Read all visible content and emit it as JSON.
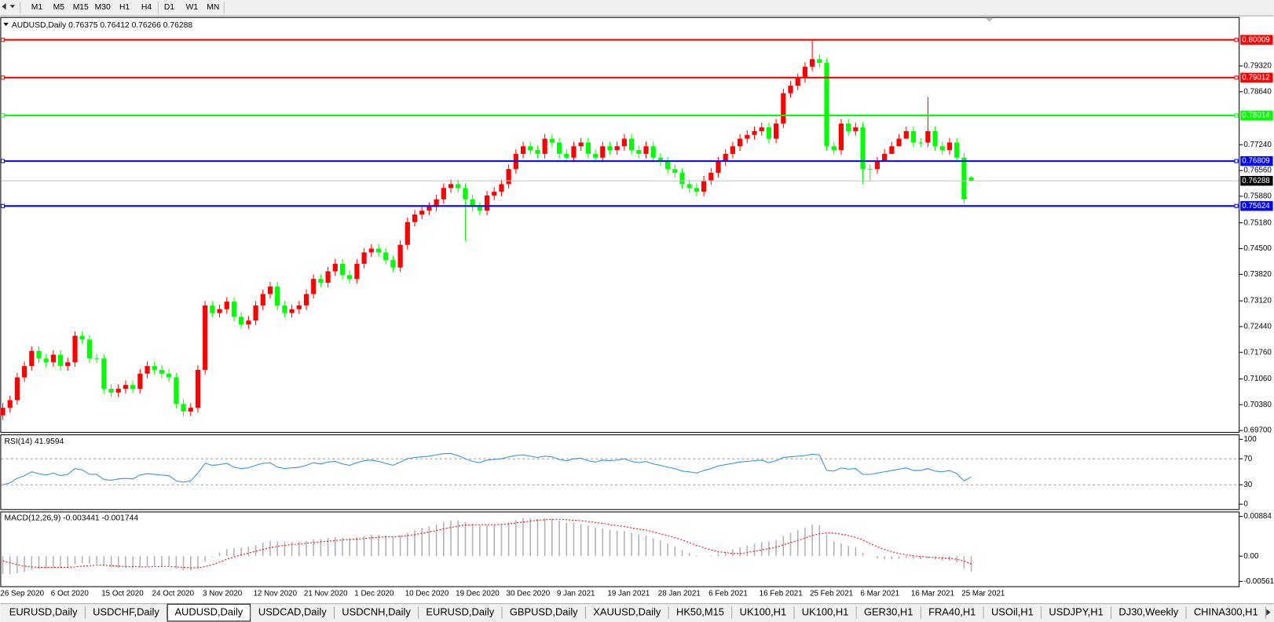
{
  "toolbar": {
    "timeframes": [
      "M1",
      "M5",
      "M15",
      "M30",
      "H1",
      "H4",
      "D1",
      "W1",
      "MN"
    ]
  },
  "tabs": {
    "items": [
      "EURUSD,Daily",
      "USDCHF,Daily",
      "AUDUSD,Daily",
      "USDCAD,Daily",
      "USDCNH,Daily",
      "EURUSD,Daily",
      "GBPUSD,Daily",
      "XAUUSD,Daily",
      "HK50,M15",
      "UK100,H1",
      "UK100,H1",
      "GER30,H1",
      "FRA40,H1",
      "USOil,H1",
      "USDJPY,H1",
      "DJ30,Weekly",
      "CHINA300,H1"
    ],
    "active": 2
  },
  "chart_data": [
    {
      "type": "candlestick",
      "title": "AUDUSD,Daily 0.76375 0.76412 0.76266 0.76288",
      "up_color": "#ff0000",
      "down_color": "#00ff00",
      "categories": [
        "26 Sep 2020",
        null,
        null,
        null,
        null,
        null,
        null,
        "6 Oct 2020",
        null,
        null,
        null,
        null,
        null,
        null,
        "15 Oct 2020",
        null,
        null,
        null,
        null,
        null,
        null,
        "24 Oct 2020",
        null,
        null,
        null,
        null,
        null,
        null,
        "3 Nov 2020",
        null,
        null,
        null,
        null,
        null,
        null,
        "12 Nov 2020",
        null,
        null,
        null,
        null,
        null,
        null,
        "21 Nov 2020",
        null,
        null,
        null,
        null,
        null,
        null,
        "1 Dec 2020",
        null,
        null,
        null,
        null,
        null,
        null,
        "10 Dec 2020",
        null,
        null,
        null,
        null,
        null,
        null,
        "19 Dec 2020",
        null,
        null,
        null,
        null,
        null,
        null,
        "30 Dec 2020",
        null,
        null,
        null,
        null,
        null,
        null,
        "9 Jan 2021",
        null,
        null,
        null,
        null,
        null,
        null,
        "19 Jan 2021",
        null,
        null,
        null,
        null,
        null,
        null,
        "28 Jan 2021",
        null,
        null,
        null,
        null,
        null,
        null,
        "6 Feb 2021",
        null,
        null,
        null,
        null,
        null,
        null,
        "16 Feb 2021",
        null,
        null,
        null,
        null,
        null,
        null,
        "25 Feb 2021",
        null,
        null,
        null,
        null,
        null,
        null,
        "6 Mar 2021",
        null,
        null,
        null,
        null,
        null,
        null,
        "16 Mar 2021",
        null,
        null,
        null,
        null,
        null,
        null,
        "25 Mar 2021",
        null
      ],
      "open": [
        0.701,
        0.703,
        0.705,
        0.711,
        0.714,
        0.718,
        0.716,
        0.715,
        0.717,
        0.714,
        0.715,
        0.722,
        0.721,
        0.716,
        0.716,
        0.708,
        0.707,
        0.708,
        0.709,
        0.708,
        0.712,
        0.714,
        0.713,
        0.712,
        0.711,
        0.704,
        0.702,
        0.703,
        0.713,
        0.73,
        0.728,
        0.729,
        0.731,
        0.727,
        0.725,
        0.726,
        0.73,
        0.733,
        0.735,
        0.73,
        0.728,
        0.729,
        0.73,
        0.733,
        0.737,
        0.736,
        0.739,
        0.741,
        0.738,
        0.737,
        0.741,
        0.744,
        0.745,
        0.744,
        0.742,
        0.74,
        0.746,
        0.752,
        0.754,
        0.755,
        0.756,
        0.758,
        0.761,
        0.762,
        0.761,
        0.758,
        0.756,
        0.755,
        0.759,
        0.76,
        0.762,
        0.766,
        0.77,
        0.772,
        0.771,
        0.77,
        0.774,
        0.773,
        0.77,
        0.769,
        0.772,
        0.773,
        0.77,
        0.769,
        0.772,
        0.771,
        0.772,
        0.774,
        0.771,
        0.77,
        0.772,
        0.769,
        0.768,
        0.766,
        0.765,
        0.762,
        0.761,
        0.76,
        0.763,
        0.765,
        0.768,
        0.77,
        0.772,
        0.774,
        0.775,
        0.776,
        0.777,
        0.774,
        0.778,
        0.786,
        0.788,
        0.79,
        0.793,
        0.795,
        0.794,
        0.772,
        0.771,
        0.778,
        0.776,
        0.777,
        0.766,
        0.766,
        0.768,
        0.77,
        0.772,
        0.774,
        0.776,
        0.773,
        0.773,
        0.776,
        0.772,
        0.771,
        0.773,
        0.769,
        0.76375
      ],
      "high": [
        0.7042,
        0.7062,
        0.7122,
        0.7152,
        0.7192,
        0.7192,
        0.7172,
        0.7182,
        0.7182,
        0.7162,
        0.7232,
        0.7232,
        0.7222,
        0.7172,
        0.7172,
        0.7092,
        0.7092,
        0.7102,
        0.7102,
        0.7132,
        0.7152,
        0.7152,
        0.7142,
        0.7132,
        0.7122,
        0.7052,
        0.7042,
        0.7142,
        0.7312,
        0.7312,
        0.7302,
        0.7322,
        0.7322,
        0.7282,
        0.7272,
        0.7312,
        0.7342,
        0.7362,
        0.7362,
        0.7312,
        0.7302,
        0.7312,
        0.7342,
        0.7382,
        0.7382,
        0.7402,
        0.7422,
        0.7422,
        0.7392,
        0.7422,
        0.7452,
        0.7462,
        0.7462,
        0.7452,
        0.7432,
        0.7472,
        0.7532,
        0.7552,
        0.7562,
        0.7572,
        0.7592,
        0.7622,
        0.7632,
        0.7632,
        0.7622,
        0.7592,
        0.7572,
        0.7602,
        0.7612,
        0.7632,
        0.7672,
        0.7712,
        0.7732,
        0.7732,
        0.7722,
        0.7752,
        0.7752,
        0.7742,
        0.7712,
        0.7732,
        0.7742,
        0.7742,
        0.7712,
        0.7732,
        0.7732,
        0.7732,
        0.7752,
        0.7752,
        0.7722,
        0.7732,
        0.7732,
        0.7702,
        0.7692,
        0.7672,
        0.7662,
        0.7632,
        0.7622,
        0.7642,
        0.7662,
        0.7692,
        0.7712,
        0.7732,
        0.7752,
        0.7762,
        0.7772,
        0.7782,
        0.7782,
        0.7792,
        0.7872,
        0.7892,
        0.7912,
        0.7942,
        0.8001,
        0.7962,
        0.7952,
        0.7732,
        0.7792,
        0.7792,
        0.7782,
        0.7782,
        0.7672,
        0.7692,
        0.7712,
        0.7732,
        0.7752,
        0.7772,
        0.7772,
        0.7742,
        0.785,
        0.7772,
        0.7732,
        0.7742,
        0.7742,
        0.7702,
        0.76412
      ],
      "low": [
        0.6998,
        0.7018,
        0.7038,
        0.7098,
        0.7128,
        0.7148,
        0.7138,
        0.7138,
        0.7128,
        0.7128,
        0.7138,
        0.7198,
        0.7148,
        0.7148,
        0.7068,
        0.7058,
        0.7058,
        0.7068,
        0.7068,
        0.7068,
        0.7108,
        0.7118,
        0.7108,
        0.7098,
        0.7028,
        0.7008,
        0.7008,
        0.7018,
        0.7118,
        0.7268,
        0.7268,
        0.7278,
        0.7258,
        0.7238,
        0.7238,
        0.7248,
        0.7288,
        0.7318,
        0.7288,
        0.7268,
        0.7268,
        0.7278,
        0.7288,
        0.7318,
        0.7348,
        0.7348,
        0.7378,
        0.7368,
        0.7358,
        0.7358,
        0.7398,
        0.7428,
        0.7428,
        0.7408,
        0.7388,
        0.7388,
        0.7448,
        0.7508,
        0.7528,
        0.7538,
        0.7548,
        0.7568,
        0.7598,
        0.7598,
        0.747,
        0.7548,
        0.7538,
        0.7538,
        0.7578,
        0.7588,
        0.7608,
        0.7648,
        0.7688,
        0.7698,
        0.7688,
        0.7688,
        0.7718,
        0.7688,
        0.7678,
        0.7678,
        0.7708,
        0.7688,
        0.7678,
        0.7678,
        0.7698,
        0.7698,
        0.7708,
        0.7698,
        0.7688,
        0.7688,
        0.7678,
        0.7668,
        0.7648,
        0.7638,
        0.7608,
        0.7598,
        0.7588,
        0.7588,
        0.7618,
        0.7638,
        0.7668,
        0.7688,
        0.7708,
        0.7728,
        0.7738,
        0.7748,
        0.7728,
        0.7728,
        0.7768,
        0.7848,
        0.7868,
        0.7888,
        0.7918,
        0.7928,
        0.7708,
        0.7698,
        0.7698,
        0.7748,
        0.7748,
        0.762,
        0.763,
        0.7648,
        0.7688,
        0.7708,
        0.7728,
        0.7748,
        0.7718,
        0.7718,
        0.7718,
        0.7708,
        0.7698,
        0.7698,
        0.7678,
        0.7568,
        0.76266
      ],
      "close": [
        0.703,
        0.705,
        0.711,
        0.714,
        0.718,
        0.716,
        0.715,
        0.717,
        0.714,
        0.715,
        0.722,
        0.721,
        0.716,
        0.716,
        0.708,
        0.707,
        0.708,
        0.709,
        0.708,
        0.712,
        0.714,
        0.713,
        0.712,
        0.711,
        0.704,
        0.702,
        0.703,
        0.713,
        0.73,
        0.728,
        0.729,
        0.731,
        0.727,
        0.725,
        0.726,
        0.73,
        0.733,
        0.735,
        0.73,
        0.728,
        0.729,
        0.73,
        0.733,
        0.737,
        0.736,
        0.739,
        0.741,
        0.738,
        0.737,
        0.741,
        0.744,
        0.745,
        0.744,
        0.742,
        0.74,
        0.746,
        0.752,
        0.754,
        0.755,
        0.756,
        0.758,
        0.761,
        0.762,
        0.761,
        0.758,
        0.756,
        0.755,
        0.759,
        0.76,
        0.762,
        0.766,
        0.77,
        0.772,
        0.771,
        0.77,
        0.774,
        0.773,
        0.77,
        0.769,
        0.772,
        0.773,
        0.77,
        0.769,
        0.772,
        0.771,
        0.772,
        0.774,
        0.771,
        0.77,
        0.772,
        0.769,
        0.768,
        0.766,
        0.765,
        0.762,
        0.761,
        0.76,
        0.763,
        0.765,
        0.768,
        0.77,
        0.772,
        0.774,
        0.775,
        0.776,
        0.777,
        0.774,
        0.778,
        0.786,
        0.788,
        0.79,
        0.793,
        0.795,
        0.794,
        0.772,
        0.771,
        0.778,
        0.776,
        0.777,
        0.766,
        0.766,
        0.768,
        0.77,
        0.772,
        0.774,
        0.776,
        0.773,
        0.773,
        0.776,
        0.772,
        0.771,
        0.773,
        0.769,
        0.758,
        0.76288
      ],
      "ylim": [
        0.6966,
        0.8061
      ],
      "yticks": [
        {
          "value": 0.7932,
          "label": "0.79320"
        },
        {
          "value": 0.7864,
          "label": "0.78640"
        },
        {
          "value": 0.7724,
          "label": "0.77240"
        },
        {
          "value": 0.7656,
          "label": "0.76560"
        },
        {
          "value": 0.7588,
          "label": "0.75880"
        },
        {
          "value": 0.7518,
          "label": "0.75180"
        },
        {
          "value": 0.745,
          "label": "0.74500"
        },
        {
          "value": 0.7382,
          "label": "0.73820"
        },
        {
          "value": 0.7312,
          "label": "0.73120"
        },
        {
          "value": 0.7244,
          "label": "0.72440"
        },
        {
          "value": 0.7176,
          "label": "0.71760"
        },
        {
          "value": 0.7106,
          "label": "0.71060"
        },
        {
          "value": 0.7038,
          "label": "0.70380"
        },
        {
          "value": 0.697,
          "label": "0.69700"
        }
      ],
      "levels": [
        {
          "value": 0.80009,
          "color": "#ff0000"
        },
        {
          "value": 0.79012,
          "color": "#ff0000"
        },
        {
          "value": 0.78014,
          "color": "#00ff00"
        },
        {
          "value": 0.76809,
          "color": "#0000ff"
        },
        {
          "value": 0.75624,
          "color": "#0000ff"
        }
      ],
      "last_price_color": "#c0c0c0"
    },
    {
      "type": "line",
      "title": "RSI(14) 41.9594",
      "color": "#2f8ee0",
      "values": [
        30,
        33,
        40,
        44,
        50,
        47,
        45,
        48,
        44,
        46,
        55,
        53,
        46,
        46,
        38,
        37,
        39,
        40,
        39,
        45,
        47,
        46,
        45,
        44,
        36,
        34,
        36,
        48,
        63,
        60,
        61,
        63,
        57,
        55,
        56,
        60,
        63,
        64,
        57,
        55,
        56,
        57,
        60,
        64,
        62,
        65,
        66,
        62,
        60,
        64,
        67,
        68,
        66,
        63,
        60,
        65,
        70,
        72,
        73,
        74,
        76,
        78,
        78,
        75,
        70,
        66,
        64,
        68,
        69,
        70,
        73,
        75,
        76,
        74,
        72,
        74,
        73,
        69,
        67,
        70,
        71,
        67,
        65,
        68,
        67,
        68,
        70,
        66,
        64,
        66,
        62,
        60,
        57,
        55,
        51,
        50,
        48,
        52,
        55,
        59,
        61,
        63,
        65,
        66,
        67,
        68,
        64,
        67,
        72,
        73,
        74,
        75,
        77,
        76,
        52,
        51,
        56,
        54,
        55,
        46,
        46,
        48,
        50,
        52,
        54,
        56,
        52,
        52,
        55,
        51,
        50,
        52,
        47,
        36,
        41.9594
      ],
      "ylim": [
        0,
        100
      ],
      "yticks": [
        0,
        30,
        70,
        100
      ]
    },
    {
      "type": "macd",
      "title": "MACD(12,26,9) -0.003441 -0.001744",
      "color": "#b0b0b0",
      "signal_color": "#ff0000",
      "values": [
        -0.004,
        -0.004,
        -0.0038,
        -0.0035,
        -0.003,
        -0.0028,
        -0.0027,
        -0.0025,
        -0.0025,
        -0.0024,
        -0.0018,
        -0.0016,
        -0.0017,
        -0.0017,
        -0.0022,
        -0.0025,
        -0.0026,
        -0.0026,
        -0.0027,
        -0.0025,
        -0.0023,
        -0.0022,
        -0.0022,
        -0.0022,
        -0.0027,
        -0.0031,
        -0.0032,
        -0.0026,
        -0.0012,
        -0.0002,
        0.0008,
        0.0016,
        0.0018,
        0.0019,
        0.0021,
        0.0025,
        0.003,
        0.0034,
        0.0033,
        0.0032,
        0.0032,
        0.0032,
        0.0034,
        0.0037,
        0.0038,
        0.004,
        0.0042,
        0.0041,
        0.004,
        0.0042,
        0.0045,
        0.0047,
        0.0047,
        0.0046,
        0.0043,
        0.0046,
        0.0052,
        0.0058,
        0.0063,
        0.0067,
        0.0071,
        0.0076,
        0.0079,
        0.0079,
        0.0076,
        0.0072,
        0.0068,
        0.0069,
        0.007,
        0.0072,
        0.0076,
        0.0081,
        0.0085,
        0.0085,
        0.0083,
        0.0084,
        0.0083,
        0.0079,
        0.0075,
        0.0074,
        0.0072,
        0.0068,
        0.0064,
        0.0062,
        0.0059,
        0.0057,
        0.0056,
        0.0052,
        0.0048,
        0.0046,
        0.004,
        0.0035,
        0.0028,
        0.0022,
        0.0014,
        0.0008,
        0.0002,
        0.0,
        0.0002,
        0.0006,
        0.001,
        0.0015,
        0.002,
        0.0024,
        0.0028,
        0.0031,
        0.0032,
        0.0036,
        0.0045,
        0.0052,
        0.0058,
        0.0064,
        0.007,
        0.0069,
        0.0048,
        0.0033,
        0.0028,
        0.0023,
        0.002,
        0.0008,
        0.0,
        -0.0005,
        -0.0007,
        -0.0007,
        -0.0006,
        -0.0004,
        -0.0006,
        -0.0007,
        -0.0005,
        -0.0008,
        -0.001,
        -0.001,
        -0.0014,
        -0.0028,
        -0.003441
      ],
      "signal": [
        -0.001,
        -0.0015,
        -0.0019,
        -0.0022,
        -0.0024,
        -0.0025,
        -0.0025,
        -0.0025,
        -0.0025,
        -0.0025,
        -0.0024,
        -0.0022,
        -0.0021,
        -0.002,
        -0.002,
        -0.0021,
        -0.0022,
        -0.0023,
        -0.0023,
        -0.0024,
        -0.0024,
        -0.0023,
        -0.0023,
        -0.0023,
        -0.0024,
        -0.0025,
        -0.0026,
        -0.0026,
        -0.0023,
        -0.0019,
        -0.0013,
        -0.0007,
        -0.0002,
        0.0003,
        0.0007,
        0.0011,
        0.0015,
        0.0019,
        0.0022,
        0.0024,
        0.0026,
        0.0027,
        0.0029,
        0.003,
        0.0032,
        0.0033,
        0.0035,
        0.0036,
        0.0037,
        0.0038,
        0.0039,
        0.0041,
        0.0042,
        0.0043,
        0.0043,
        0.0044,
        0.0046,
        0.0048,
        0.0051,
        0.0054,
        0.0057,
        0.0061,
        0.0064,
        0.0067,
        0.0069,
        0.007,
        0.007,
        0.007,
        0.007,
        0.0071,
        0.0072,
        0.0074,
        0.0076,
        0.0078,
        0.008,
        0.0081,
        0.0082,
        0.0082,
        0.0081,
        0.008,
        0.0079,
        0.0077,
        0.0075,
        0.0073,
        0.007,
        0.0068,
        0.0066,
        0.0063,
        0.006,
        0.0058,
        0.0054,
        0.005,
        0.0046,
        0.0041,
        0.0036,
        0.003,
        0.0024,
        0.0019,
        0.0014,
        0.001,
        0.0008,
        0.0006,
        0.0006,
        0.0008,
        0.0011,
        0.0014,
        0.0017,
        0.002,
        0.0025,
        0.003,
        0.0035,
        0.004,
        0.0046,
        0.005,
        0.0052,
        0.0051,
        0.0049,
        0.0046,
        0.0042,
        0.0036,
        0.0028,
        0.0021,
        0.0015,
        0.001,
        0.0006,
        0.0003,
        0.0001,
        -0.0001,
        -0.0002,
        -0.0003,
        -0.0004,
        -0.0005,
        -0.0007,
        -0.0011,
        -0.001744
      ],
      "ylim": [
        -0.00561,
        0.00884
      ],
      "yticks": [
        0.00884,
        {
          "value": 0,
          "label": "0.00"
        },
        -0.00561
      ]
    }
  ]
}
